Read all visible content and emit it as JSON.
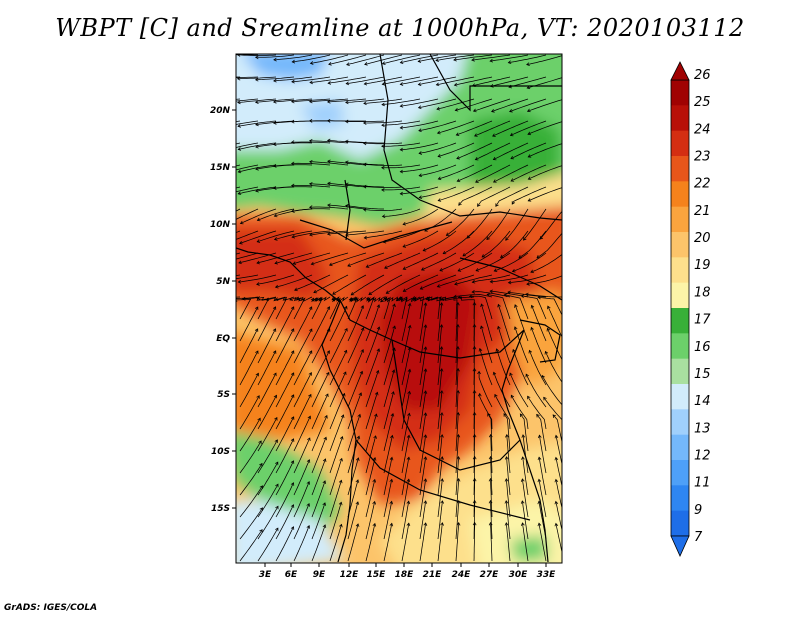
{
  "title": "WBPT [C] and Sreamline at 1000hPa, VT: 2020103112",
  "credit": "GrADS: IGES/COLA",
  "map": {
    "lat_labels": [
      "20N",
      "15N",
      "10N",
      "5N",
      "EQ",
      "5S",
      "10S",
      "15S"
    ],
    "lon_labels": [
      "3E",
      "6E",
      "9E",
      "12E",
      "15E",
      "18E",
      "21E",
      "24E",
      "27E",
      "30E",
      "33E"
    ]
  },
  "colorbar": {
    "labels": [
      "7",
      "9",
      "11",
      "12",
      "13",
      "14",
      "15",
      "16",
      "17",
      "18",
      "19",
      "20",
      "21",
      "22",
      "23",
      "24",
      "25",
      "26"
    ],
    "colors": [
      "#1e6ee8",
      "#2e86f2",
      "#4ea0f8",
      "#74b8fb",
      "#a0d0fc",
      "#d2ecfb",
      "#a9e0a0",
      "#6cd06a",
      "#38b038",
      "#fcf4a8",
      "#fde08c",
      "#fcc46a",
      "#faa43e",
      "#f5821c",
      "#e8561a",
      "#d42e12",
      "#b81008",
      "#a00202"
    ]
  }
}
